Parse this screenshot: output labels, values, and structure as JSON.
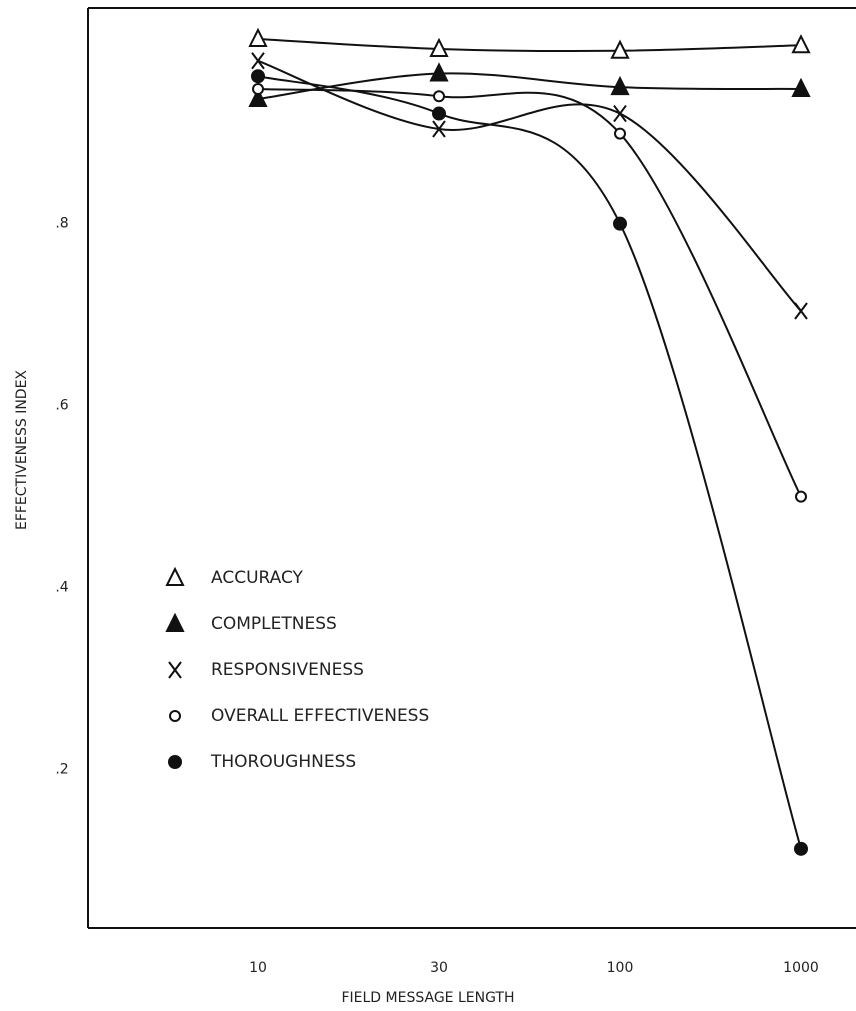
{
  "chart_data": {
    "type": "line",
    "xlabel": "FIELD MESSAGE LENGTH",
    "ylabel": "EFFECTIVENESS INDEX",
    "categories": [
      "10",
      "30",
      "100",
      "1000"
    ],
    "ylim": [
      0.026,
      1.037
    ],
    "yticks": [
      {
        "value": 0.2,
        "label": ".2"
      },
      {
        "value": 0.4,
        "label": ".4"
      },
      {
        "value": 0.6,
        "label": ".6"
      },
      {
        "value": 0.8,
        "label": ".8"
      }
    ],
    "legend": "left",
    "series": [
      {
        "name": "ACCURACY",
        "marker": "triangle-open",
        "color": "#111111",
        "values": [
          1.003,
          0.992,
          0.99,
          0.996
        ]
      },
      {
        "name": "COMPLETNESS",
        "marker": "triangle-filled",
        "color": "#111111",
        "values": [
          0.937,
          0.965,
          0.95,
          0.948
        ]
      },
      {
        "name": "RESPONSIVENESS",
        "marker": "x",
        "color": "#111111",
        "values": [
          0.979,
          0.904,
          0.921,
          0.704
        ]
      },
      {
        "name": "OVERALL EFFECTIVENESS",
        "marker": "circle-open",
        "color": "#111111",
        "values": [
          0.948,
          0.94,
          0.899,
          0.5
        ]
      },
      {
        "name": "THOROUGHNESS",
        "marker": "circle-filled",
        "color": "#111111",
        "values": [
          0.962,
          0.921,
          0.8,
          0.113
        ]
      }
    ]
  }
}
